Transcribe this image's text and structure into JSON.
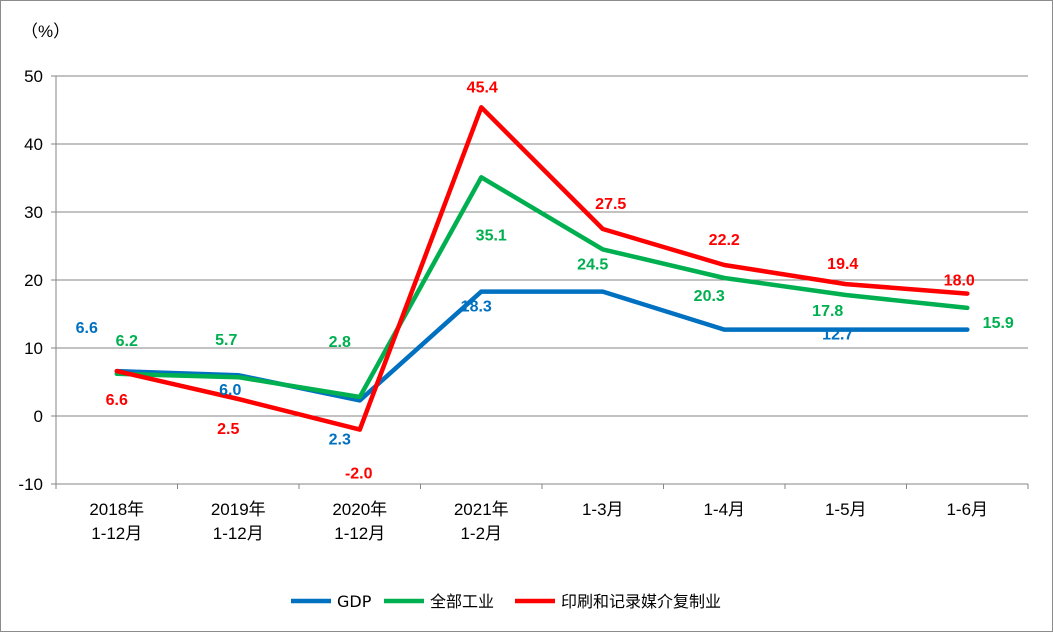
{
  "chart_data": {
    "type": "line",
    "title": "",
    "ylabel": "（%）",
    "xlabel": "",
    "ylim": [
      -10,
      50
    ],
    "yticks": [
      -10,
      0,
      10,
      20,
      30,
      40,
      50
    ],
    "grid": true,
    "legend_position": "bottom",
    "categories": [
      [
        "2018年",
        "1-12月"
      ],
      [
        "2019年",
        "1-12月"
      ],
      [
        "2020年",
        "1-12月"
      ],
      [
        "2021年",
        "1-2月"
      ],
      [
        "1-3月"
      ],
      [
        "1-4月"
      ],
      [
        "1-5月"
      ],
      [
        "1-6月"
      ]
    ],
    "series": [
      {
        "name": "GDP",
        "color": "#0070C0",
        "values": [
          6.6,
          6.0,
          2.3,
          18.3,
          18.3,
          12.7,
          12.7,
          12.7
        ],
        "labels": [
          "6.6",
          "6.0",
          "2.3",
          "18.3",
          "",
          "",
          "12.7",
          ""
        ]
      },
      {
        "name": "全部工业",
        "color": "#00B050",
        "values": [
          6.2,
          5.7,
          2.8,
          35.1,
          24.5,
          20.3,
          17.8,
          15.9
        ],
        "labels": [
          "6.2",
          "5.7",
          "2.8",
          "35.1",
          "24.5",
          "20.3",
          "17.8",
          "15.9"
        ]
      },
      {
        "name": "印刷和记录媒介复制业",
        "color": "#FF0000",
        "values": [
          6.6,
          2.5,
          -2.0,
          45.4,
          27.5,
          22.2,
          19.4,
          18.0
        ],
        "labels": [
          "6.6",
          "2.5",
          "-2.0",
          "45.4",
          "27.5",
          "22.2",
          "19.4",
          "18.0"
        ]
      }
    ]
  }
}
